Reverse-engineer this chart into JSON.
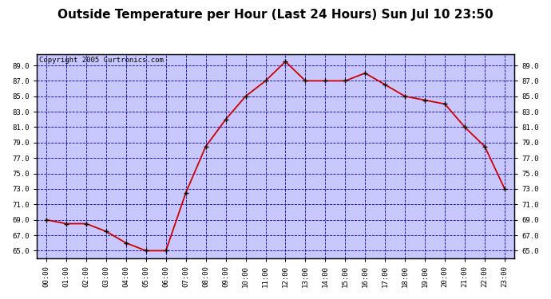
{
  "title": "Outside Temperature per Hour (Last 24 Hours) Sun Jul 10 23:50",
  "copyright": "Copyright 2005 Curtronics.com",
  "hours": [
    "00:00",
    "01:00",
    "02:00",
    "03:00",
    "04:00",
    "05:00",
    "06:00",
    "07:00",
    "08:00",
    "09:00",
    "10:00",
    "11:00",
    "12:00",
    "13:00",
    "14:00",
    "15:00",
    "16:00",
    "17:00",
    "18:00",
    "19:00",
    "20:00",
    "21:00",
    "22:00",
    "23:00"
  ],
  "temperatures": [
    69.0,
    68.5,
    68.5,
    67.5,
    66.0,
    65.0,
    65.0,
    72.5,
    78.5,
    82.0,
    85.0,
    87.0,
    89.5,
    87.0,
    87.0,
    87.0,
    88.0,
    86.5,
    85.0,
    84.5,
    84.0,
    81.0,
    78.5,
    73.0
  ],
  "ylim_min": 64.0,
  "ylim_max": 90.5,
  "ytick_min": 65.0,
  "ytick_max": 89.0,
  "ytick_step": 2.0,
  "line_color": "#cc0000",
  "bg_color": "#c8c8ff",
  "grid_color": "#0000bb",
  "title_fontsize": 11,
  "copyright_fontsize": 6.5
}
